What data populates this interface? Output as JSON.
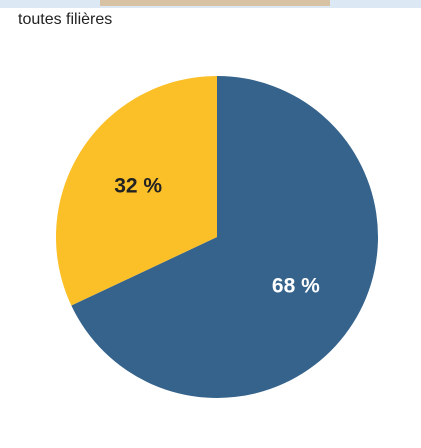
{
  "chart_data": {
    "type": "pie",
    "title": "toutes filières",
    "values": [
      68,
      32
    ],
    "value_labels": [
      "68 %",
      "32 %"
    ],
    "colors": [
      "#35638c",
      "#fbbf28"
    ],
    "label_colors": [
      "#ffffff",
      "#222222"
    ]
  }
}
